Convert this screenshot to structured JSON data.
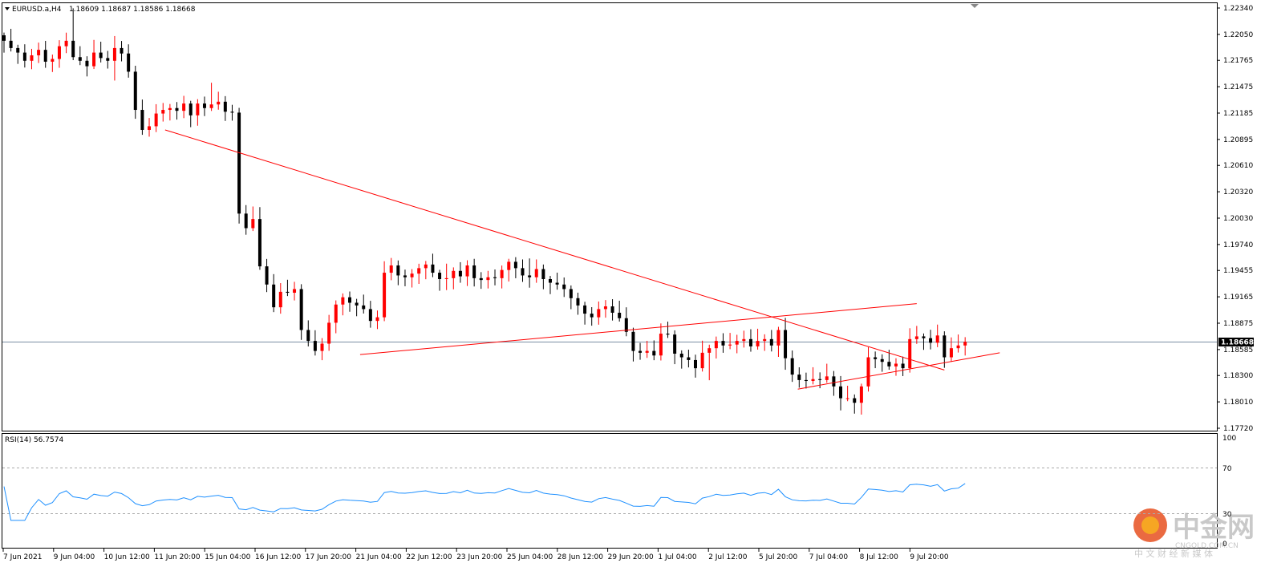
{
  "header": {
    "symbol": "EURUSD.a,H4",
    "ohlc": "1.18609 1.18687 1.18586 1.18668"
  },
  "rsi": {
    "label": "RSI(14) 56.7574",
    "levels": [
      "100",
      "70",
      "30",
      "0"
    ]
  },
  "watermark": {
    "brand": "中金网",
    "domain": "CNGOLD.COM.CN",
    "tagline": "中 文 财 经 新 媒 体"
  },
  "colors": {
    "bull": "#ff0000",
    "bear": "#000000",
    "trendline": "#ff0000",
    "rsi": "#1e90ff",
    "bid_line": "#7a8fa3"
  },
  "chart_data": {
    "type": "candlestick",
    "timeframe": "H4",
    "y_axis_labels": [
      "1.22340",
      "1.22050",
      "1.21765",
      "1.21475",
      "1.21185",
      "1.20895",
      "1.20610",
      "1.20320",
      "1.20030",
      "1.19740",
      "1.19455",
      "1.19165",
      "1.18875",
      "1.18585",
      "1.18300",
      "1.18010",
      "1.17720"
    ],
    "ylim": [
      1.1772,
      1.2234
    ],
    "current_price": "1.18668",
    "x_axis_labels": [
      "7 Jun 2021",
      "9 Jun 04:00",
      "10 Jun 12:00",
      "11 Jun 20:00",
      "15 Jun 04:00",
      "16 Jun 12:00",
      "17 Jun 20:00",
      "21 Jun 04:00",
      "22 Jun 12:00",
      "23 Jun 20:00",
      "25 Jun 04:00",
      "28 Jun 12:00",
      "29 Jun 20:00",
      "1 Jul 04:00",
      "2 Jul 12:00",
      "5 Jul 20:00",
      "7 Jul 04:00",
      "8 Jul 12:00",
      "9 Jul 20:00"
    ],
    "price_path": [
      1.2198,
      1.219,
      1.2185,
      1.2176,
      1.2182,
      1.2188,
      1.2175,
      1.2178,
      1.2192,
      1.2198,
      1.218,
      1.2176,
      1.217,
      1.2185,
      1.2179,
      1.2176,
      1.219,
      1.2184,
      1.2164,
      1.2122,
      1.21,
      1.2104,
      1.2118,
      1.2122,
      1.2124,
      1.2121,
      1.2129,
      1.2116,
      1.2129,
      1.2124,
      1.2128,
      1.2131,
      1.212,
      1.2119,
      1.2008,
      1.1992,
      1.2002,
      1.195,
      1.193,
      1.1905,
      1.1922,
      1.1921,
      1.1925,
      1.188,
      1.1868,
      1.1857,
      1.1865,
      1.1888,
      1.1908,
      1.1916,
      1.191,
      1.1907,
      1.1903,
      1.189,
      1.1894,
      1.1943,
      1.1951,
      1.194,
      1.1938,
      1.1942,
      1.1948,
      1.1952,
      1.1943,
      1.1936,
      1.1937,
      1.1945,
      1.1939,
      1.1951,
      1.1937,
      1.1935,
      1.1938,
      1.1937,
      1.1946,
      1.1955,
      1.1948,
      1.194,
      1.1938,
      1.1947,
      1.1936,
      1.1932,
      1.193,
      1.1925,
      1.1915,
      1.1907,
      1.1898,
      1.1894,
      1.1903,
      1.1906,
      1.1899,
      1.1893,
      1.1878,
      1.1857,
      1.1855,
      1.1857,
      1.1852,
      1.1876,
      1.1875,
      1.1854,
      1.185,
      1.1847,
      1.1838,
      1.1855,
      1.186,
      1.1868,
      1.1863,
      1.1864,
      1.1868,
      1.187,
      1.1862,
      1.1868,
      1.187,
      1.1863,
      1.188,
      1.1849,
      1.1831,
      1.1825,
      1.1824,
      1.1826,
      1.1825,
      1.1829,
      1.1818,
      1.1805,
      1.1805,
      1.18,
      1.1818,
      1.185,
      1.1848,
      1.1845,
      1.184,
      1.1843,
      1.1838,
      1.187,
      1.1873,
      1.1871,
      1.1866,
      1.1874,
      1.185,
      1.186,
      1.1863,
      1.1867
    ],
    "trendlines": [
      {
        "from": [
          "11 Jun",
          1.21
        ],
        "to": [
          "8 Jul",
          1.1836
        ]
      },
      {
        "from": [
          "21 Jun",
          1.1853
        ],
        "to": [
          "9 Jul",
          1.1909
        ]
      },
      {
        "from": [
          "5 Jul",
          1.1815
        ],
        "to": [
          "9 Jul",
          1.1855
        ]
      }
    ],
    "rsi_period": 14,
    "rsi_last": 56.7574,
    "rsi_levels": [
      70,
      30
    ]
  }
}
